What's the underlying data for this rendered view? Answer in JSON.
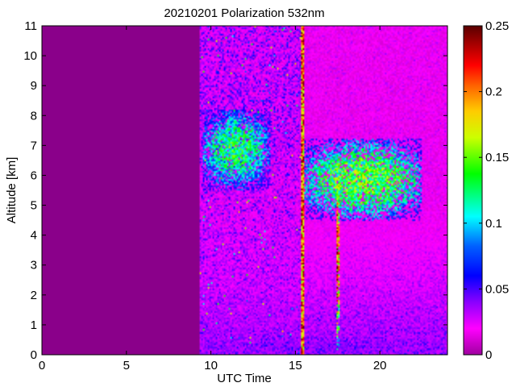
{
  "chart_data": {
    "type": "heatmap",
    "title": "20210201 Polarization 532nm",
    "xlabel": "UTC Time",
    "ylabel": "Altitude [km]",
    "xlim": [
      0,
      24
    ],
    "ylim": [
      0,
      11
    ],
    "x_ticks": [
      0,
      5,
      10,
      15,
      20
    ],
    "y_ticks": [
      0,
      1,
      2,
      3,
      4,
      5,
      6,
      7,
      8,
      9,
      10,
      11
    ],
    "colorbar": {
      "min": 0,
      "max": 0.25,
      "ticks": [
        0,
        0.05,
        0.1,
        0.15,
        0.2,
        0.25
      ],
      "tick_labels": [
        "0",
        "0.05",
        "0.1",
        "0.15",
        "0.2",
        "0.25"
      ]
    },
    "data_start_utc": 9.3,
    "data_end_utc": 24,
    "fill_value": 0,
    "features": [
      {
        "label": "surface layer",
        "x": [
          9.3,
          24
        ],
        "y": [
          0,
          0.6
        ],
        "value": 0.04
      },
      {
        "label": "cloud layer",
        "x": [
          9.5,
          13.5
        ],
        "y": [
          5.5,
          8.2
        ],
        "value": 0.15
      },
      {
        "label": "cloud layer",
        "x": [
          15.5,
          22.5
        ],
        "y": [
          4.5,
          7.2
        ],
        "value": 0.17
      },
      {
        "label": "precipitation column",
        "x": [
          17.4,
          17.6
        ],
        "y": [
          0,
          6.5
        ],
        "value": 0.25
      }
    ]
  }
}
